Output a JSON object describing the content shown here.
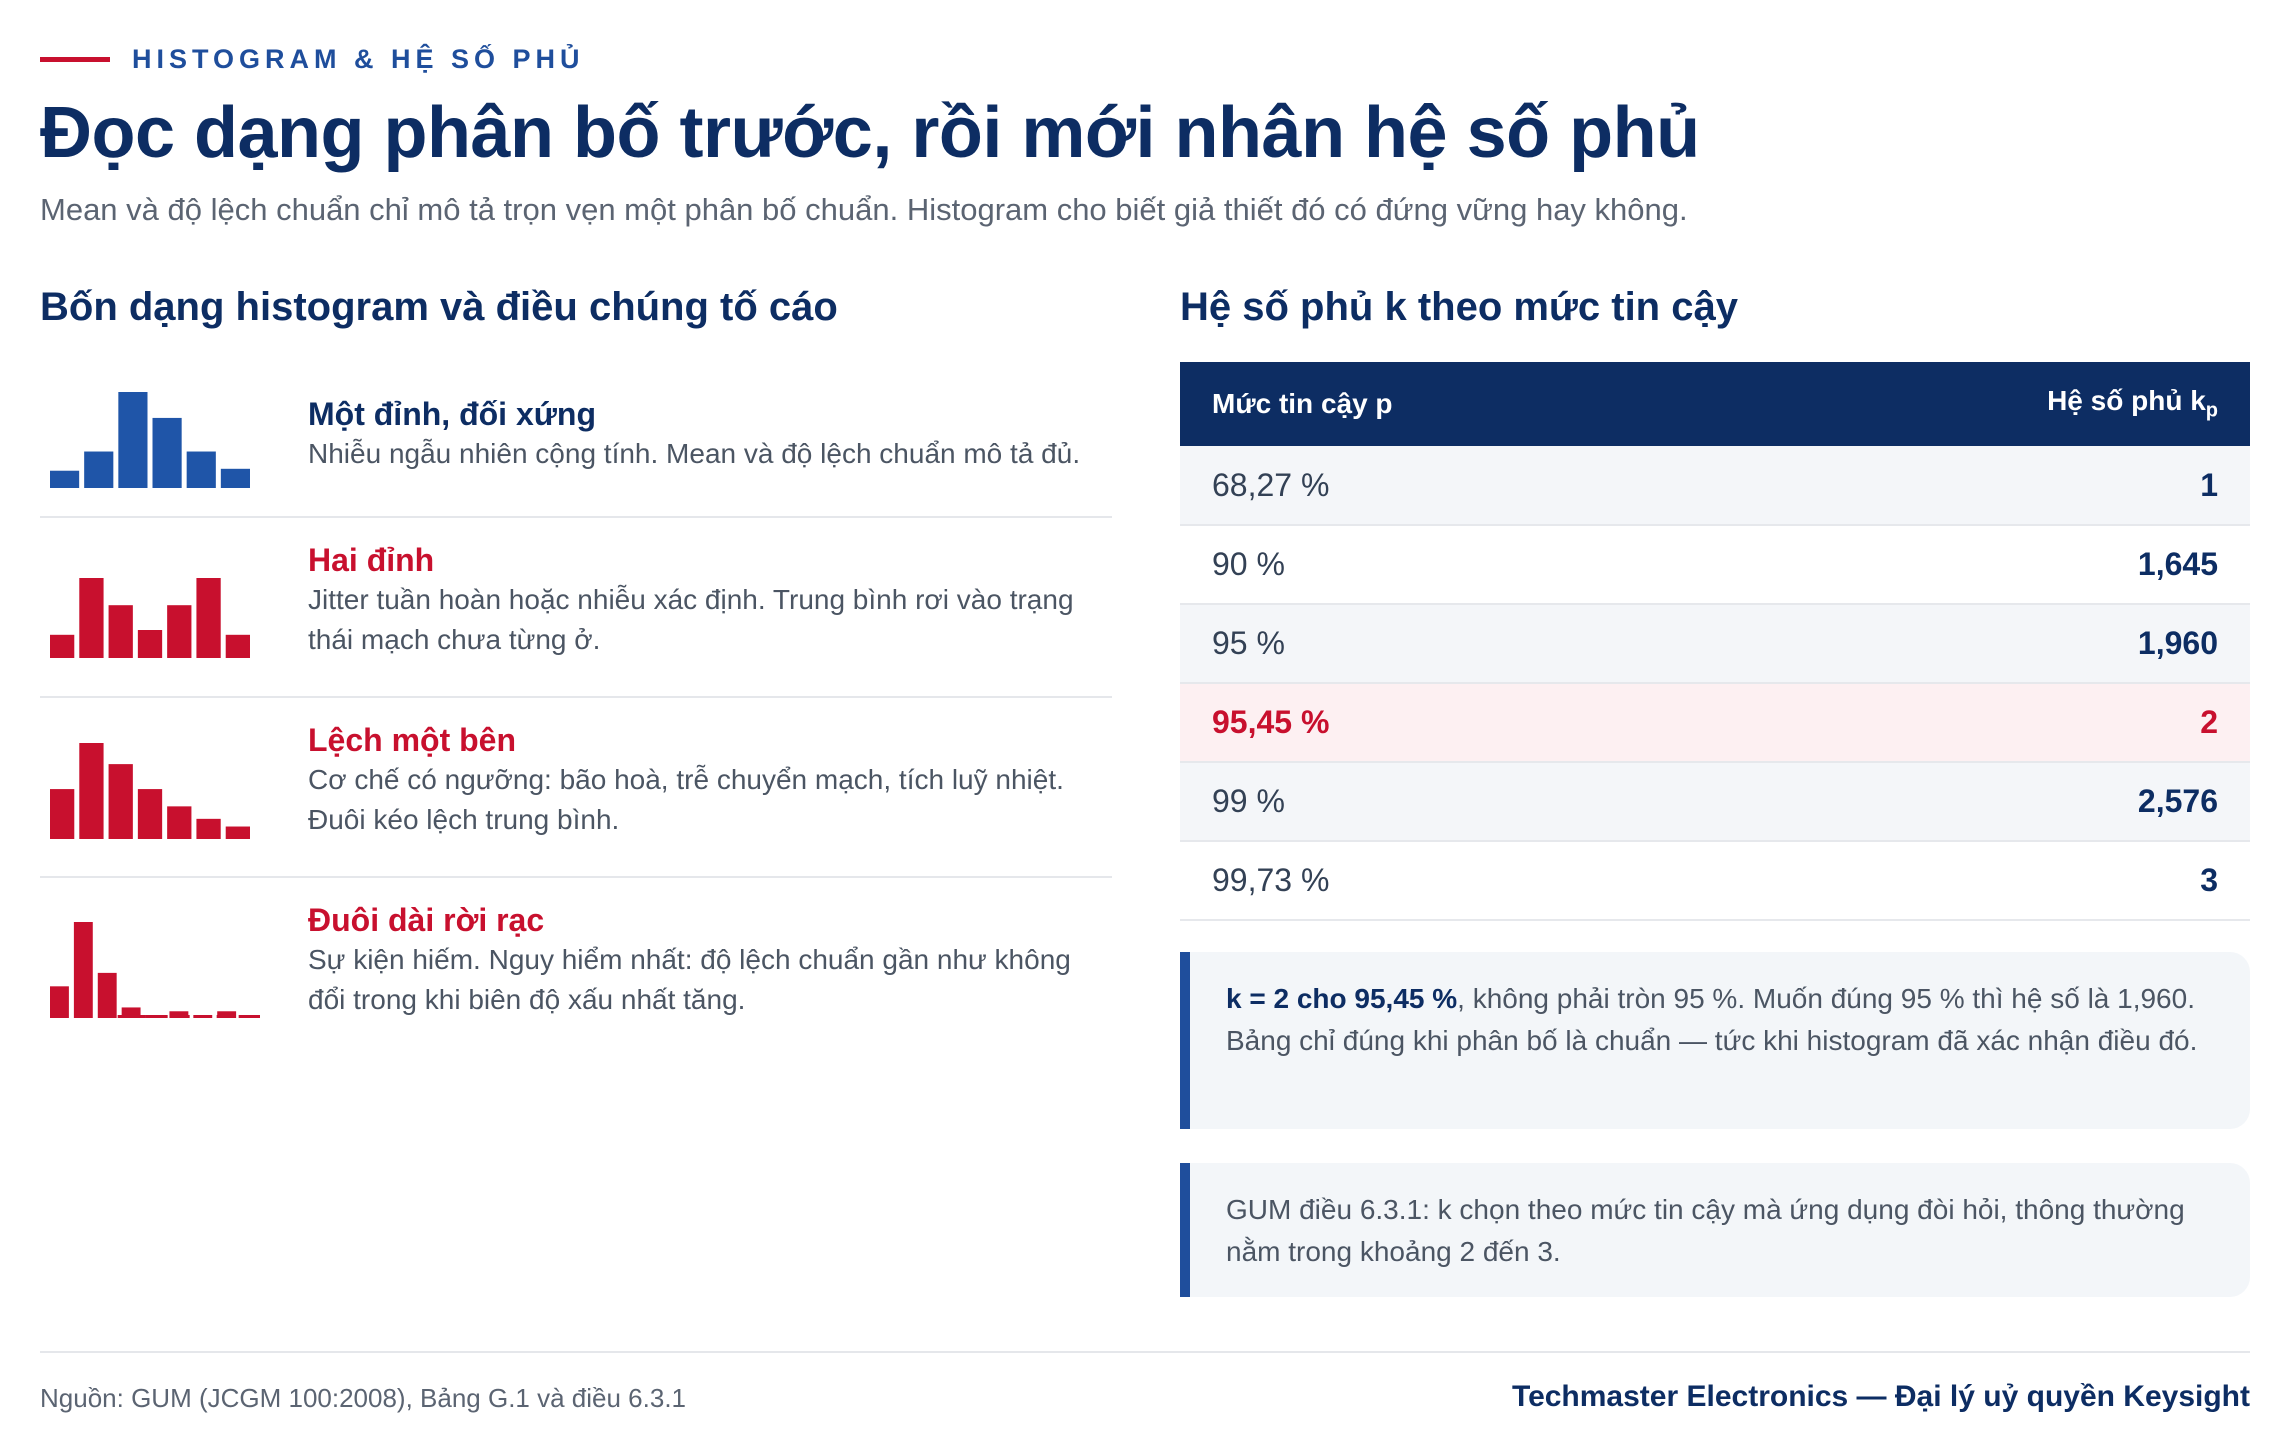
{
  "eyebrow": "HISTOGRAM & HỆ SỐ PHỦ",
  "title": "Đọc dạng phân bố trước, rồi mới nhân hệ số phủ",
  "subtitle": "Mean và độ lệch chuẩn chỉ mô tả trọn vẹn một phân bố chuẩn. Histogram cho biết giả thiết đó có đứng vững hay không.",
  "left": {
    "heading": "Bốn dạng histogram và điều chúng tố cáo",
    "items": [
      {
        "name": "Một đỉnh, đối xứng",
        "desc": "Nhiễu ngẫu nhiên cộng tính. Mean và độ lệch chuẩn mô tả đủ.",
        "color": "#1f55a8",
        "bars": [
          0.18,
          0.38,
          1.0,
          0.73,
          0.38,
          0.2
        ]
      },
      {
        "name": "Hai đỉnh",
        "desc": "Jitter tuần hoàn hoặc nhiễu xác định. Trung bình rơi vào trạng thái mạch chưa từng ở.",
        "color": "#c8102e",
        "bars": [
          0.29,
          1.0,
          0.66,
          0.35,
          0.66,
          1.0,
          0.29
        ]
      },
      {
        "name": "Lệch một bên",
        "desc": "Cơ chế có ngưỡng: bão hoà, trễ chuyển mạch, tích luỹ nhiệt. Đuôi kéo lệch trung bình.",
        "color": "#c8102e",
        "bars": [
          0.52,
          1.0,
          0.78,
          0.52,
          0.34,
          0.21,
          0.13
        ]
      },
      {
        "name": "Đuôi dài rời rạc",
        "desc": "Sự kiện hiếm. Nguy hiểm nhất: độ lệch chuẩn gần như không đổi trong khi biên độ xấu nhất tăng.",
        "color": "#c8102e",
        "bars": [
          0.33,
          1.0,
          0.47,
          0.11,
          0.03,
          0.07,
          0.03,
          0.07,
          0.03
        ]
      }
    ]
  },
  "right": {
    "heading": "Hệ số phủ k theo mức tin cậy",
    "col_p": "Mức tin cậy p",
    "col_k": "Hệ số phủ k",
    "col_k_sub": "p",
    "rows": [
      {
        "p": "68,27 %",
        "k": "1"
      },
      {
        "p": "90 %",
        "k": "1,645"
      },
      {
        "p": "95 %",
        "k": "1,960"
      },
      {
        "p": "95,45 %",
        "k": "2"
      },
      {
        "p": "99 %",
        "k": "2,576"
      },
      {
        "p": "99,73 %",
        "k": "3"
      }
    ],
    "note1_bold": "k = 2 cho 95,45 %",
    "note1_rest": ", không phải tròn 95 %. Muốn đúng 95 % thì hệ số là 1,960. Bảng chỉ đúng khi phân bố là chuẩn — tức khi histogram đã xác nhận điều đó.",
    "note2": "GUM điều 6.3.1: k chọn theo mức tin cậy mà ứng dụng đòi hỏi, thông thường nằm trong khoảng 2 đến 3."
  },
  "footer": {
    "source": "Nguồn: GUM (JCGM 100:2008), Bảng G.1 và điều 6.3.1",
    "brand": "Techmaster Electronics — Đại lý uỷ quyền Keysight"
  },
  "colors": {
    "navy": "#0d2d63",
    "blue": "#1f55a8",
    "red": "#c8102e"
  }
}
